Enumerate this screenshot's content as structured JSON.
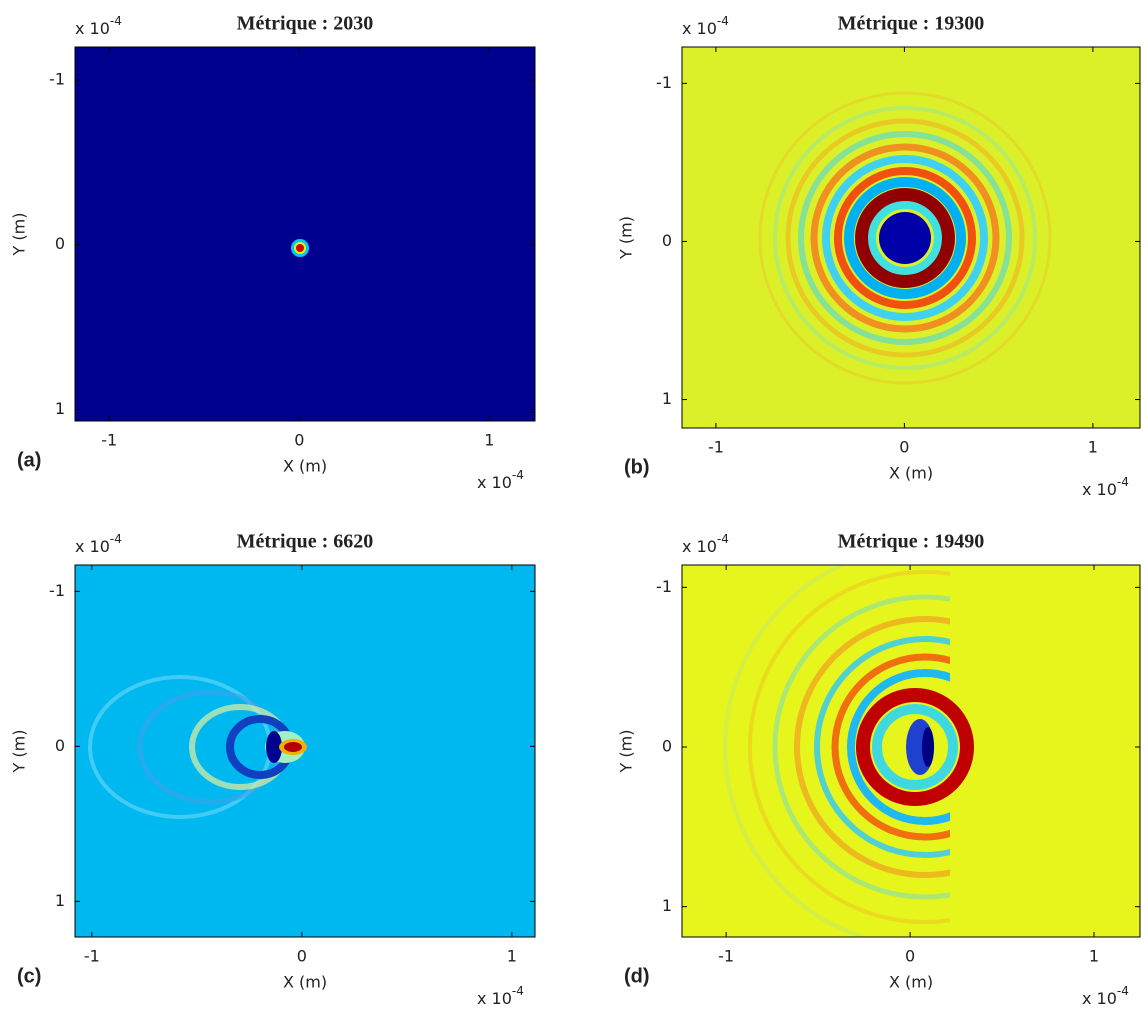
{
  "chart_data": [
    {
      "type": "heatmap",
      "title": "Métrique : 2030",
      "panel_label": "(a)",
      "xlabel": "X (m)",
      "ylabel": "Y (m)",
      "x_scale": {
        "base": "x 10",
        "exponent": "-4"
      },
      "y_scale": {
        "base": "x 10",
        "exponent": "-4"
      },
      "xlim": [
        -1.18,
        1.24
      ],
      "ylim": [
        -1.2,
        1.07
      ],
      "xticks": [
        -1,
        0,
        1
      ],
      "yticks": [
        -1,
        0,
        1
      ],
      "background": "#00008f"
    },
    {
      "type": "heatmap",
      "title": "Métrique : 19300",
      "panel_label": "(b)",
      "xlabel": "X (m)",
      "ylabel": "Y (m)",
      "x_scale": {
        "base": "x 10",
        "exponent": "-4"
      },
      "y_scale": {
        "base": "x 10",
        "exponent": "-4"
      },
      "xlim": [
        -1.18,
        1.25
      ],
      "ylim": [
        -1.23,
        1.18
      ],
      "xticks": [
        -1,
        0,
        1
      ],
      "yticks": [
        -1,
        0,
        1
      ],
      "background": "#dcf02a"
    },
    {
      "type": "heatmap",
      "title": "Métrique : 6620",
      "panel_label": "(c)",
      "xlabel": "X (m)",
      "ylabel": "Y (m)",
      "x_scale": {
        "base": "x 10",
        "exponent": "-4"
      },
      "y_scale": {
        "base": "x 10",
        "exponent": "-4"
      },
      "xlim": [
        -1.08,
        1.11
      ],
      "ylim": [
        -1.17,
        1.23
      ],
      "xticks": [
        -1,
        0,
        1
      ],
      "yticks": [
        -1,
        0,
        1
      ],
      "background": "#00b8f0"
    },
    {
      "type": "heatmap",
      "title": "Métrique : 19490",
      "panel_label": "(d)",
      "xlabel": "X (m)",
      "ylabel": "Y (m)",
      "x_scale": {
        "base": "x 10",
        "exponent": "-4"
      },
      "y_scale": {
        "base": "x 10",
        "exponent": "-4"
      },
      "xlim": [
        -1.24,
        1.25
      ],
      "ylim": [
        -1.14,
        1.19
      ],
      "xticks": [
        -1,
        0,
        1
      ],
      "yticks": [
        -1,
        0,
        1
      ],
      "background": "#e6f51c"
    }
  ]
}
